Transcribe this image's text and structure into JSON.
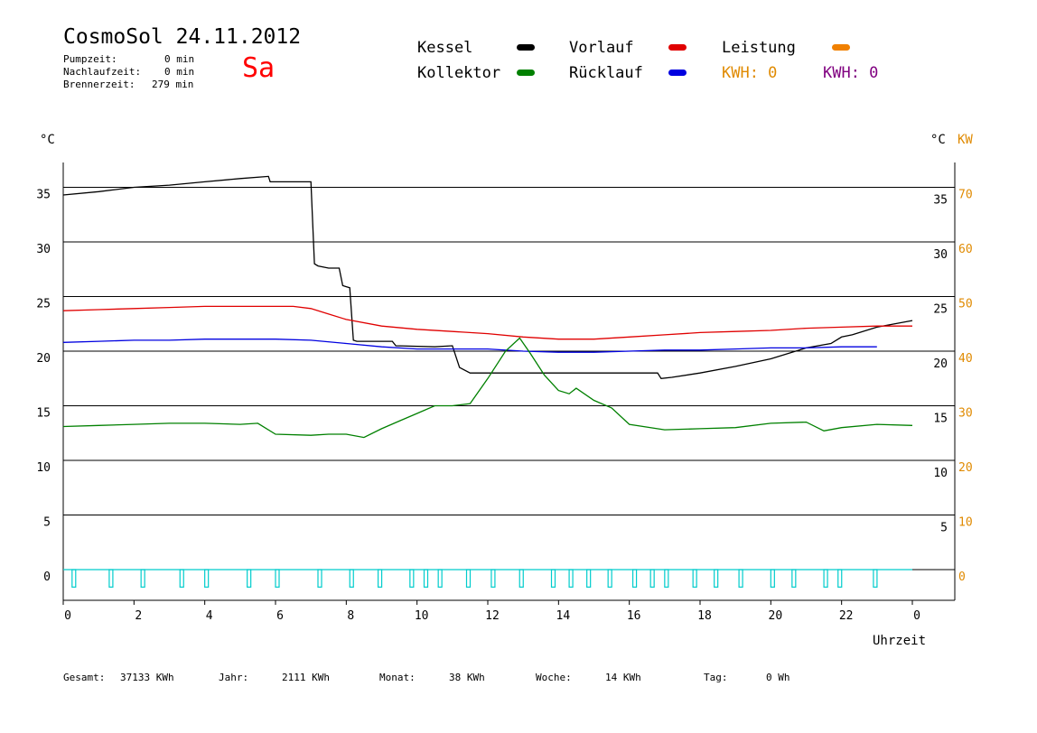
{
  "header": {
    "title": "CosmoSol 24.11.2012",
    "day": "Sa",
    "info": [
      {
        "label": "Pumpzeit:",
        "value": "0 min"
      },
      {
        "label": "Nachlaufzeit:",
        "value": "0 min"
      },
      {
        "label": "Brennerzeit:",
        "value": "279 min"
      }
    ]
  },
  "legend": {
    "kessel": {
      "label": "Kessel",
      "color": "#000000"
    },
    "vorlauf": {
      "label": "Vorlauf",
      "color": "#e00000"
    },
    "leistung": {
      "label": "Leistung",
      "color": "#f08000"
    },
    "kollektor": {
      "label": "Kollektor",
      "color": "#008000"
    },
    "ruecklauf": {
      "label": "Rücklauf",
      "color": "#0000e0"
    },
    "kwh1": {
      "text": "KWH: 0",
      "color": "#e08a00"
    },
    "kwh2": {
      "text": "KWH: 0",
      "color": "#800080"
    }
  },
  "axes": {
    "left_unit": "°C",
    "right_unit_c": "°C",
    "right_unit_kw": "KW",
    "x_label": "Uhrzeit"
  },
  "footer": [
    {
      "label": "Gesamt:",
      "value": "37133 KWh"
    },
    {
      "label": "Jahr:",
      "value": "2111 KWh"
    },
    {
      "label": "Monat:",
      "value": "38 KWh"
    },
    {
      "label": "Woche:",
      "value": "14 KWh"
    },
    {
      "label": "Tag:",
      "value": "0 Wh"
    }
  ],
  "chart_data": {
    "type": "line",
    "x_ticks": [
      "0",
      "2",
      "4",
      "6",
      "8",
      "10",
      "12",
      "14",
      "16",
      "18",
      "20",
      "22",
      "0"
    ],
    "xlim": [
      0,
      24
    ],
    "ylim": [
      -2.5,
      38
    ],
    "y_ticks_left": [
      "0",
      "5",
      "10",
      "15",
      "20",
      "25",
      "30",
      "35"
    ],
    "y_ticks_right_c": [
      "5",
      "10",
      "15",
      "20",
      "25",
      "30",
      "35"
    ],
    "y_ticks_right_kw": [
      "0",
      "10",
      "20",
      "30",
      "40",
      "50",
      "60",
      "70"
    ],
    "grid": true,
    "series": [
      {
        "name": "Kessel",
        "color": "#000000",
        "x": [
          0,
          1,
          2,
          3,
          4,
          5,
          5.8,
          5.85,
          6.5,
          7.0,
          7.1,
          7.2,
          7.5,
          7.8,
          7.9,
          8.1,
          8.2,
          8.3,
          9.0,
          9.3,
          9.4,
          10.5,
          11.0,
          11.2,
          11.5,
          13,
          15,
          16,
          16.8,
          16.9,
          17.2,
          18,
          19,
          20,
          21,
          21.7,
          22.0,
          22.3,
          23,
          24
        ],
        "y": [
          34.3,
          34.6,
          35.0,
          35.2,
          35.5,
          35.8,
          36.0,
          35.5,
          35.5,
          35.5,
          28.0,
          27.8,
          27.6,
          27.6,
          26.0,
          25.8,
          21.0,
          20.9,
          20.9,
          20.9,
          20.5,
          20.4,
          20.5,
          18.5,
          18.0,
          18.0,
          18.0,
          18.0,
          18.0,
          17.5,
          17.6,
          18.0,
          18.6,
          19.3,
          20.3,
          20.7,
          21.3,
          21.5,
          22.2,
          22.8
        ]
      },
      {
        "name": "Vorlauf",
        "color": "#e00000",
        "x": [
          0,
          1,
          2,
          3,
          4,
          5,
          6,
          6.5,
          7,
          7.5,
          8,
          9,
          10,
          11,
          12,
          13,
          14,
          15,
          16,
          17,
          18,
          19,
          20,
          21,
          22,
          23,
          24
        ],
        "y": [
          23.7,
          23.8,
          23.9,
          24.0,
          24.1,
          24.1,
          24.1,
          24.1,
          23.9,
          23.4,
          22.9,
          22.3,
          22.0,
          21.8,
          21.6,
          21.3,
          21.1,
          21.1,
          21.3,
          21.5,
          21.7,
          21.8,
          21.9,
          22.1,
          22.2,
          22.3,
          22.3
        ]
      },
      {
        "name": "Rücklauf",
        "color": "#0000e0",
        "x": [
          0,
          1,
          2,
          3,
          4,
          5,
          6,
          7,
          8,
          9,
          10,
          11,
          12,
          13,
          14,
          15,
          16,
          17,
          18,
          19,
          20,
          21,
          22,
          23
        ],
        "y": [
          20.8,
          20.9,
          21.0,
          21.0,
          21.1,
          21.1,
          21.1,
          21.0,
          20.7,
          20.4,
          20.2,
          20.2,
          20.2,
          20.0,
          19.9,
          19.9,
          20.0,
          20.1,
          20.1,
          20.2,
          20.3,
          20.3,
          20.4,
          20.4
        ]
      },
      {
        "name": "Kollektor",
        "color": "#008000",
        "x": [
          0,
          1,
          2,
          3,
          4,
          5,
          5.5,
          6,
          7,
          7.5,
          8,
          8.5,
          9,
          9.5,
          10,
          10.5,
          11,
          11.5,
          12,
          12.5,
          12.9,
          13.2,
          13.6,
          14,
          14.3,
          14.5,
          15,
          15.5,
          16,
          17,
          18,
          19,
          20,
          21,
          21.5,
          22,
          23,
          24
        ],
        "y": [
          13.1,
          13.2,
          13.3,
          13.4,
          13.4,
          13.3,
          13.4,
          12.4,
          12.3,
          12.4,
          12.4,
          12.1,
          12.9,
          13.6,
          14.3,
          15.0,
          15.0,
          15.2,
          17.5,
          20.0,
          21.2,
          19.8,
          17.8,
          16.4,
          16.1,
          16.6,
          15.5,
          14.8,
          13.3,
          12.8,
          12.9,
          13.0,
          13.4,
          13.5,
          12.7,
          13.0,
          13.3,
          13.2
        ]
      },
      {
        "name": "Leistung",
        "color": "#00cccc",
        "x": [
          0.25,
          1.3,
          2.2,
          3.3,
          4.0,
          5.2,
          6.0,
          7.2,
          8.1,
          8.9,
          9.8,
          10.2,
          10.6,
          11.4,
          12.1,
          12.9,
          13.8,
          14.3,
          14.8,
          15.4,
          16.1,
          16.6,
          17.0,
          17.8,
          18.4,
          19.1,
          20.0,
          20.6,
          21.5,
          21.9,
          22.9
        ],
        "y": [
          1.6,
          1.6,
          1.6,
          1.6,
          1.6,
          1.6,
          1.6,
          1.6,
          1.6,
          1.6,
          1.6,
          1.6,
          1.6,
          1.6,
          1.6,
          1.6,
          1.6,
          1.6,
          1.6,
          1.6,
          1.6,
          1.6,
          1.6,
          1.6,
          1.6,
          1.6,
          1.6,
          1.6,
          1.6,
          1.6,
          1.6
        ]
      }
    ]
  }
}
